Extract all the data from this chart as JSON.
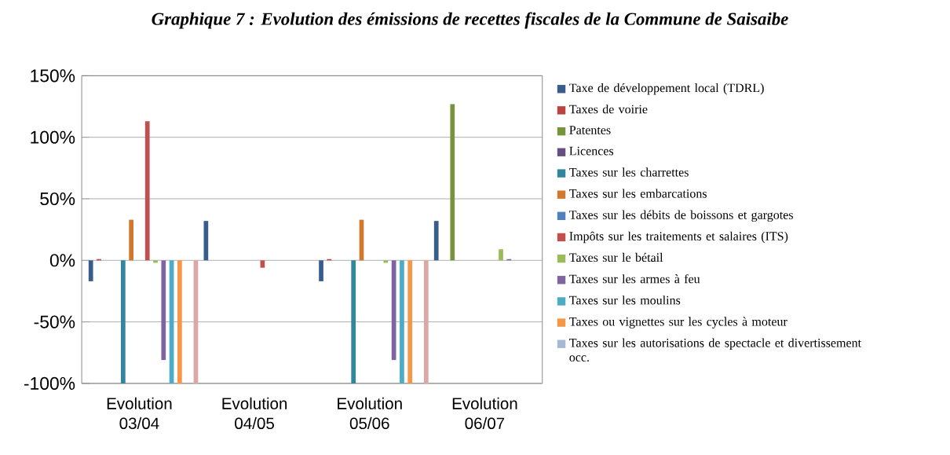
{
  "chart_data": {
    "type": "bar",
    "title": "Graphique 7 : Evolution des émissions de recettes fiscales de la Commune de Saisaibe",
    "categories": [
      "Evolution 03/04",
      "Evolution 04/05",
      "Evolution 05/06",
      "Evolution 06/07"
    ],
    "series": [
      {
        "name": "Taxe de développement local (TDRL)",
        "color": "#385d8a",
        "values": [
          -17,
          32,
          -17,
          32
        ]
      },
      {
        "name": "Taxes de voirie",
        "color": "#b94441",
        "values": [
          1,
          0,
          1,
          0
        ]
      },
      {
        "name": "Patentes",
        "color": "#77933c",
        "values": [
          0,
          0,
          0,
          127
        ]
      },
      {
        "name": "Licences",
        "color": "#664e82",
        "values": [
          0,
          0,
          0,
          0
        ]
      },
      {
        "name": "Taxes sur les charrettes",
        "color": "#31859c",
        "values": [
          -100,
          0,
          -100,
          0
        ]
      },
      {
        "name": "Taxes sur les embarcations",
        "color": "#d2782e",
        "values": [
          33,
          0,
          33,
          0
        ]
      },
      {
        "name": "Taxes sur les débits de boissons et gargotes",
        "color": "#4f81bd",
        "values": [
          0,
          0,
          0,
          0
        ]
      },
      {
        "name": "Impôts sur les traitements et salaires (ITS)",
        "color": "#c0504d",
        "values": [
          113,
          -6,
          0,
          0
        ]
      },
      {
        "name": "Taxes sur le bétail",
        "color": "#9bbb59",
        "values": [
          -2,
          0,
          -2,
          9
        ]
      },
      {
        "name": "Taxes sur les armes à feu",
        "color": "#8064a2",
        "values": [
          -81,
          0,
          -81,
          1
        ]
      },
      {
        "name": "Taxes sur les moulins",
        "color": "#4bacc6",
        "values": [
          -100,
          0,
          -100,
          0
        ]
      },
      {
        "name": "Taxes ou vignettes sur les cycles à moteur",
        "color": "#f79646",
        "values": [
          -100,
          0,
          -100,
          0
        ]
      },
      {
        "name": "Taxes sur les autorisations de spectacle et divertissement occ.",
        "color": "#a5b9d5",
        "values": [
          0,
          0,
          0,
          0
        ]
      },
      {
        "color": "#d9a8a7",
        "values": [
          -100,
          0,
          -100,
          0
        ]
      }
    ],
    "ylim": [
      -100,
      150
    ],
    "yticks": [
      {
        "value": -100,
        "label": "-100%"
      },
      {
        "value": -50,
        "label": "-50%"
      },
      {
        "value": 0,
        "label": "0%"
      },
      {
        "value": 50,
        "label": "50%"
      },
      {
        "value": 100,
        "label": "100%"
      },
      {
        "value": 150,
        "label": "150%"
      }
    ],
    "grid": "y",
    "legend": "right"
  }
}
